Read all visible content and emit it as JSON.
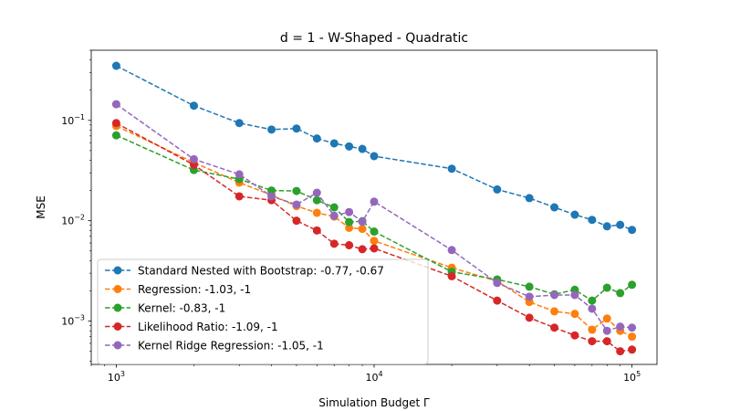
{
  "chart_data": {
    "type": "line",
    "title": "d = 1 - W-Shaped - Quadratic",
    "xlabel": "Simulation Budget Γ",
    "ylabel": "MSE",
    "xscale": "log",
    "yscale": "log",
    "xlim": [
      800,
      125000
    ],
    "ylim": [
      0.00037,
      0.5
    ],
    "xticks": [
      {
        "value": 1000,
        "base": "10",
        "exp": "3"
      },
      {
        "value": 10000,
        "base": "10",
        "exp": "4"
      },
      {
        "value": 100000,
        "base": "10",
        "exp": "5"
      }
    ],
    "yticks": [
      {
        "value": 0.001,
        "base": "10",
        "exp": "−3"
      },
      {
        "value": 0.01,
        "base": "10",
        "exp": "−2"
      },
      {
        "value": 0.1,
        "base": "10",
        "exp": "−1"
      }
    ],
    "grid": false,
    "legend_position": "lower-left",
    "x": [
      1000,
      2000,
      3000,
      4000,
      5000,
      6000,
      7000,
      8000,
      9000,
      10000,
      20000,
      30000,
      40000,
      50000,
      60000,
      70000,
      80000,
      90000,
      100000
    ],
    "series": [
      {
        "name": "Standard Nested with Bootstrap: -0.77, -0.67",
        "color": "#1f77b4",
        "values": [
          0.35,
          0.14,
          0.094,
          0.081,
          0.083,
          0.066,
          0.059,
          0.055,
          0.052,
          0.044,
          0.033,
          0.0205,
          0.0168,
          0.0136,
          0.0115,
          0.0102,
          0.0088,
          0.0091,
          0.0081
        ]
      },
      {
        "name": "Regression: -1.03, -1",
        "color": "#ff7f0e",
        "values": [
          0.088,
          0.038,
          0.024,
          0.018,
          0.014,
          0.012,
          0.011,
          0.0085,
          0.0083,
          0.0063,
          0.0034,
          0.0025,
          0.00155,
          0.00125,
          0.00118,
          0.00082,
          0.00106,
          0.0008,
          0.0007
        ]
      },
      {
        "name": "Kernel: -0.83, -1",
        "color": "#2ca02c",
        "values": [
          0.071,
          0.032,
          0.026,
          0.02,
          0.0198,
          0.016,
          0.0136,
          0.0097,
          0.0099,
          0.0078,
          0.0031,
          0.0026,
          0.0022,
          0.00185,
          0.00205,
          0.0016,
          0.00215,
          0.0019,
          0.0023
        ]
      },
      {
        "name": "Likelihood Ratio: -1.09, -1",
        "color": "#d62728",
        "values": [
          0.094,
          0.036,
          0.0175,
          0.016,
          0.01,
          0.008,
          0.0059,
          0.0057,
          0.0052,
          0.0053,
          0.0028,
          0.0016,
          0.00108,
          0.00086,
          0.00072,
          0.00063,
          0.00063,
          0.0005,
          0.00052
        ]
      },
      {
        "name": "Kernel Ridge Regression: -1.05, -1",
        "color": "#9467bd",
        "values": [
          0.145,
          0.041,
          0.029,
          0.0175,
          0.0145,
          0.019,
          0.0112,
          0.0122,
          0.0098,
          0.0155,
          0.0051,
          0.0024,
          0.00175,
          0.00182,
          0.00182,
          0.00133,
          0.0008,
          0.00088,
          0.00086
        ]
      }
    ]
  }
}
